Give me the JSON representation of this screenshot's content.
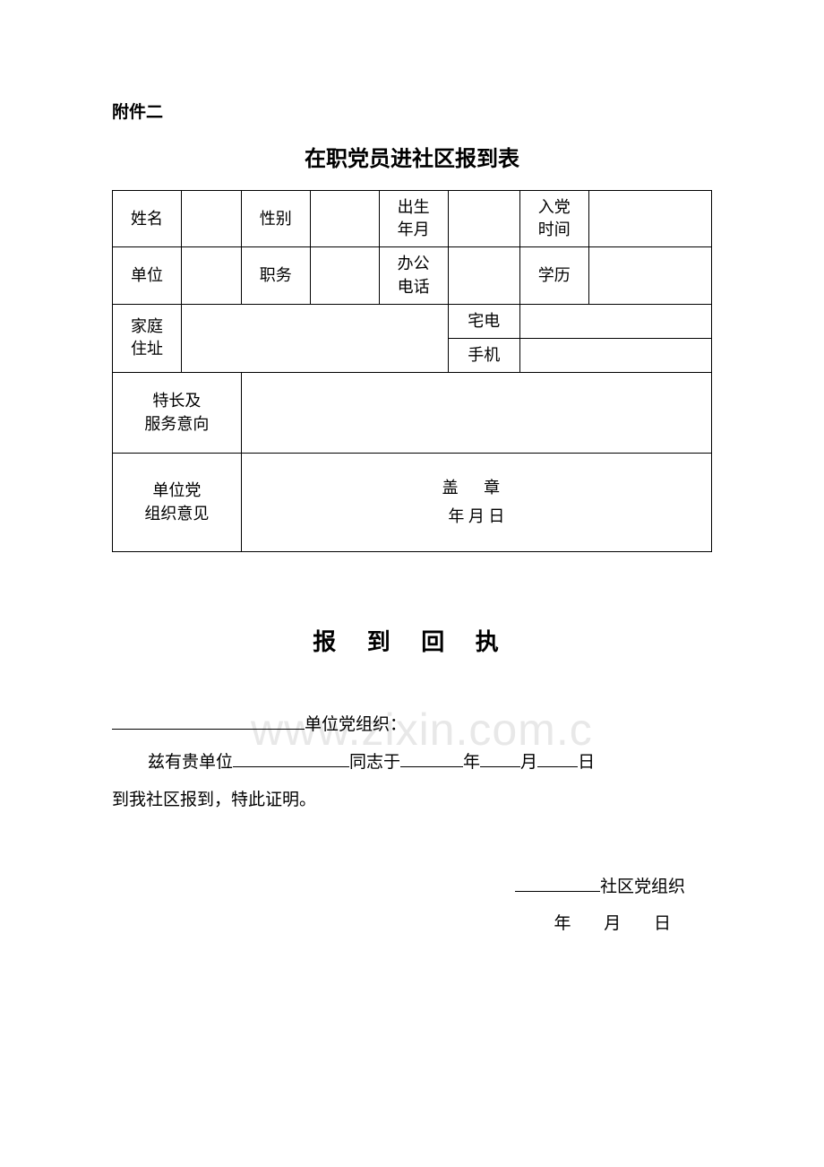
{
  "attachment_label": "附件二",
  "title": "在职党员进社区报到表",
  "labels": {
    "name": "姓名",
    "gender": "性别",
    "birth": "出生\n年月",
    "join_party": "入党\n时间",
    "unit": "单位",
    "position": "职务",
    "office_tel": "办公\n电话",
    "education": "学历",
    "home_addr": "家庭\n住址",
    "home_tel": "宅电",
    "mobile": "手机",
    "specialty": "特长及\n服务意向",
    "unit_opinion": "单位党\n组织意见"
  },
  "opinion_box": {
    "stamp": "盖 章",
    "date": "年    月    日"
  },
  "receipt": {
    "title": "报 到 回 执",
    "org_suffix": "单位党组织：",
    "line_prefix": "兹有贵单位",
    "line_mid1": "同志于",
    "year": "年",
    "month": "月",
    "day": "日",
    "line2": "到我社区报到，特此证明。",
    "sign_suffix": "社区党组织",
    "sign_date": "年 月 日"
  },
  "watermark": "www.zixin.com.c"
}
